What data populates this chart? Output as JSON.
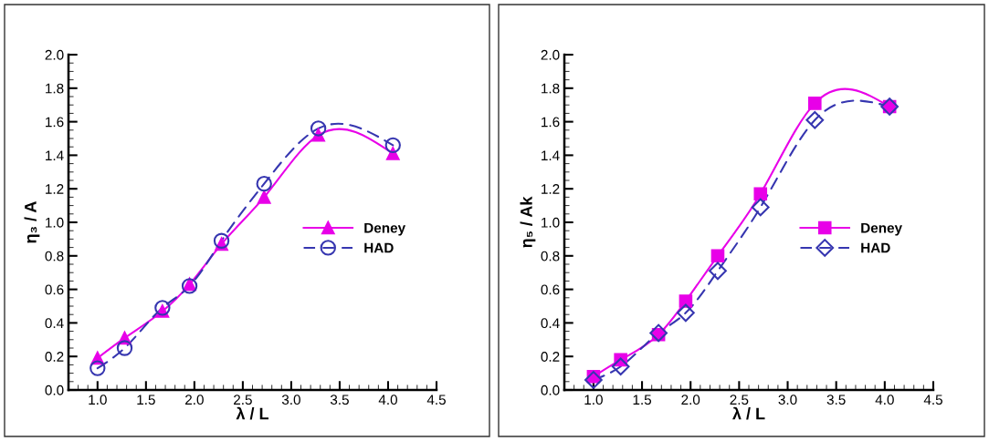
{
  "chart_data": [
    {
      "type": "line",
      "xlabel": "λ / L",
      "ylabel": "η₃ / A",
      "xlim": [
        0.7,
        4.5
      ],
      "xticks": [
        {
          "value": 1,
          "label": "1.0"
        },
        1.5,
        {
          "value": 2,
          "label": "2.0"
        },
        2.5,
        {
          "value": 3,
          "label": "3.0"
        },
        3.5,
        {
          "value": 4,
          "label": "4.0"
        },
        4.5
      ],
      "ylim": [
        0,
        2.0
      ],
      "yticks": [
        {
          "value": 0,
          "label": "0.0"
        },
        0.2,
        0.4,
        0.6,
        0.8,
        {
          "value": 1,
          "label": "1.0"
        },
        1.2,
        1.4,
        1.6,
        1.8,
        {
          "value": 2,
          "label": "2.0"
        }
      ],
      "legend": "right",
      "grid": false,
      "x": [
        1.0,
        1.28,
        1.67,
        1.95,
        2.28,
        2.72,
        3.28,
        4.05
      ],
      "series": [
        {
          "name": "Deney",
          "color": "#e800e8",
          "marker": "triangle",
          "line_style": "solid",
          "values": [
            0.19,
            0.31,
            0.47,
            0.63,
            0.87,
            1.15,
            1.52,
            1.41
          ]
        },
        {
          "name": "HAD",
          "color": "#3636b0",
          "marker": "circle",
          "line_style": "dashed",
          "values": [
            0.13,
            0.25,
            0.49,
            0.62,
            0.89,
            1.23,
            1.56,
            1.46
          ]
        }
      ]
    },
    {
      "type": "line",
      "xlabel": "λ / L",
      "ylabel": "η₅ / Ak",
      "xlim": [
        0.7,
        4.5
      ],
      "xticks": [
        {
          "value": 1,
          "label": "1.0"
        },
        1.5,
        {
          "value": 2,
          "label": "2.0"
        },
        2.5,
        {
          "value": 3,
          "label": "3.0"
        },
        3.5,
        {
          "value": 4,
          "label": "4.0"
        },
        4.5
      ],
      "ylim": [
        0,
        2.0
      ],
      "yticks": [
        {
          "value": 0,
          "label": "0.0"
        },
        0.2,
        0.4,
        0.6,
        0.8,
        {
          "value": 1,
          "label": "1.0"
        },
        1.2,
        1.4,
        1.6,
        1.8,
        {
          "value": 2,
          "label": "2.0"
        }
      ],
      "legend": "right",
      "grid": false,
      "x": [
        1.0,
        1.28,
        1.67,
        1.95,
        2.28,
        2.72,
        3.28,
        4.05
      ],
      "series": [
        {
          "name": "Deney",
          "color": "#e800e8",
          "marker": "square",
          "line_style": "solid",
          "values": [
            0.08,
            0.18,
            0.33,
            0.53,
            0.8,
            1.17,
            1.71,
            1.69
          ]
        },
        {
          "name": "HAD",
          "color": "#3636b0",
          "marker": "diamond",
          "line_style": "dashed",
          "values": [
            0.06,
            0.14,
            0.34,
            0.46,
            0.71,
            1.09,
            1.61,
            1.69
          ]
        }
      ]
    }
  ]
}
